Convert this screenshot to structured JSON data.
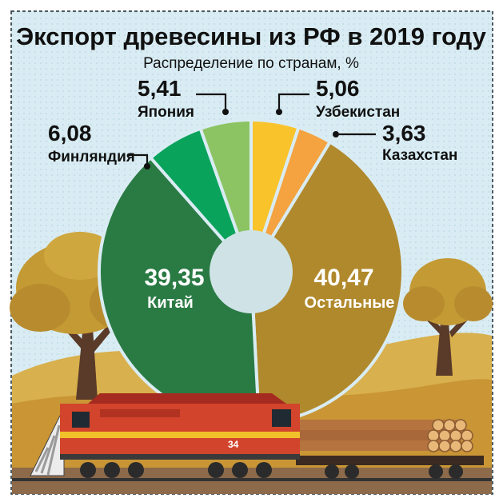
{
  "chart_data": {
    "type": "pie",
    "donut": true,
    "title": "Экспорт древесины из РФ в 2019 году",
    "subtitle": "Распределение по странам, %",
    "legend": "none",
    "slices": [
      {
        "label": "Узбекистан",
        "value": 5.06,
        "value_text": "5,06",
        "color": "#f9c32b"
      },
      {
        "label": "Казахстан",
        "value": 3.63,
        "value_text": "3,63",
        "color": "#f4a340"
      },
      {
        "label": "Остальные",
        "value": 40.47,
        "value_text": "40,47",
        "color": "#b0892c"
      },
      {
        "label": "Китай",
        "value": 39.35,
        "value_text": "39,35",
        "color": "#2a7a44"
      },
      {
        "label": "Финляндия",
        "value": 6.08,
        "value_text": "6,08",
        "color": "#0aa35c"
      },
      {
        "label": "Япония",
        "value": 5.41,
        "value_text": "5,41",
        "color": "#8cc464"
      }
    ]
  },
  "colors": {
    "background": "#d9ecf3",
    "hole": "#cfe3e6",
    "border": "#1f2a33",
    "text": "#111111",
    "inner_text": "#ffffff"
  },
  "illustration": {
    "scene": "landscape-with-trees-and-log-train",
    "locomotive_text": "34"
  }
}
